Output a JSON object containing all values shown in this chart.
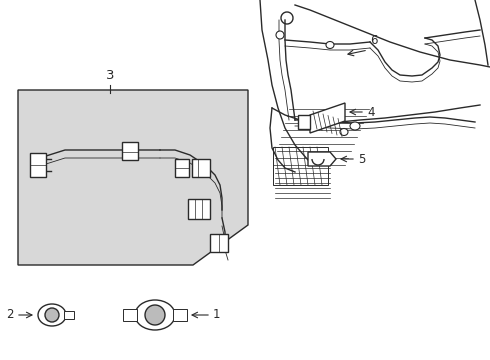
{
  "bg_color": "#ffffff",
  "line_color": "#2a2a2a",
  "box_fill": "#d8d8d8",
  "label_fontsize": 8.5,
  "title_fontsize": 7
}
